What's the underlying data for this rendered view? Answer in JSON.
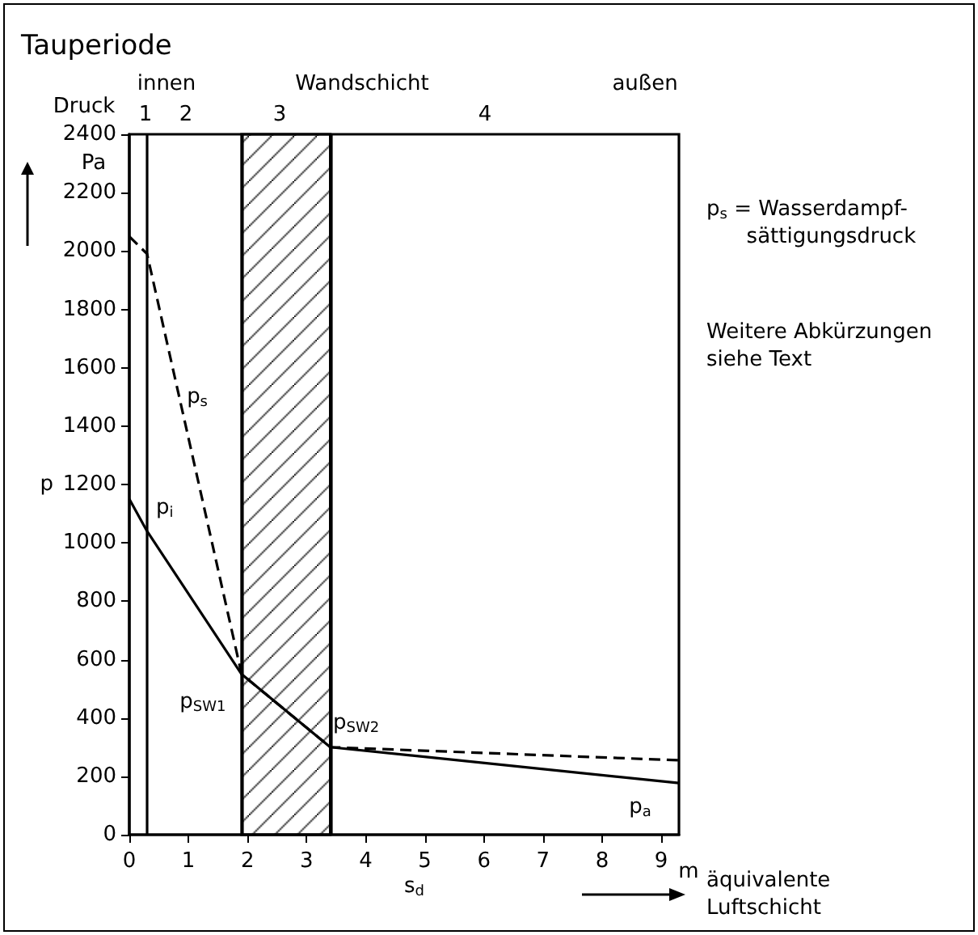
{
  "chart_data": {
    "type": "line",
    "title": "Tauperiode",
    "xlabel": "s$_{d}$",
    "ylabel": "p",
    "xlim": [
      0,
      9.3
    ],
    "xticks": [
      0,
      1,
      2,
      3,
      4,
      5,
      6,
      7,
      8,
      9
    ],
    "ylim": [
      0,
      2400
    ],
    "yticks": [
      0,
      200,
      400,
      600,
      800,
      1000,
      1200,
      1400,
      1600,
      1800,
      2000,
      2200,
      2400
    ],
    "grid": false,
    "legend": false,
    "marker": "none",
    "series": [
      {
        "name": "p$_{s}$",
        "color": "#000000",
        "line_style": "dashed",
        "x": [
          0,
          0.3,
          1.9,
          3.4,
          9.3
        ],
        "values": [
          2050,
          1990,
          550,
          300,
          255
        ]
      },
      {
        "name": "p$_{i}$",
        "color": "#000000",
        "line_style": "solid",
        "x": [
          0,
          0.3,
          1.9,
          3.4,
          9.3
        ],
        "values": [
          1150,
          1040,
          550,
          300,
          177
        ]
      }
    ],
    "ref_lines": [
      {
        "axis": "x",
        "value": 0.3,
        "label": null,
        "color": "#000000"
      },
      {
        "axis": "x",
        "value": 1.9,
        "label": null,
        "color": "#000000"
      },
      {
        "axis": "x",
        "value": 3.4,
        "label": null,
        "color": "#000000"
      }
    ],
    "bands": [
      {
        "axis": "x",
        "from": 1.9,
        "to": 3.4,
        "label": null,
        "color": "#000000"
      }
    ],
    "annotations": [
      "Druck",
      "Pa",
      "innen",
      "Wandschicht",
      "außen",
      "1",
      "2",
      "3",
      "4",
      "m",
      "äquivalente Luftschicht",
      "p$_{s}$ = Wasserdampf-sättigungsdruck",
      "Weitere Abkürzungen siehe Text",
      {
        "text": "p$_{SW1}$",
        "x": 1.9,
        "y": 550
      },
      {
        "text": "p$_{SW2}$",
        "x": 3.4,
        "y": 300
      },
      {
        "text": "p$_{a}$",
        "x": 9.3,
        "y": 177
      }
    ]
  }
}
